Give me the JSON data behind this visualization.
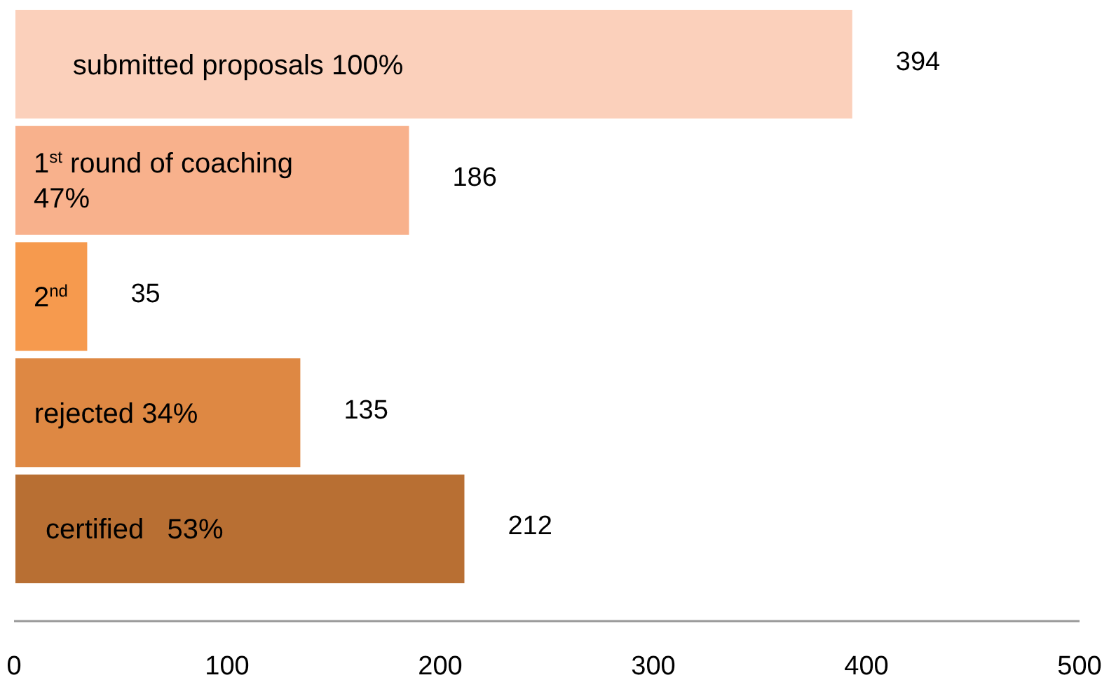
{
  "chart_data": {
    "type": "bar",
    "orientation": "horizontal",
    "categories": [
      "submitted proposals 100%",
      "1$^{st}$ round of coaching 47%",
      "2$^{nd}$",
      "rejected 34%",
      "certified   53%"
    ],
    "values": [
      394,
      186,
      35,
      135,
      212
    ],
    "colors": [
      "#fbd0bb",
      "#f8b18c",
      "#f69a4e",
      "#de8843",
      "#b86f33"
    ],
    "xlim": [
      0,
      500
    ],
    "xticks": [
      0,
      100,
      200,
      300,
      400,
      500
    ],
    "data_labels": true
  }
}
